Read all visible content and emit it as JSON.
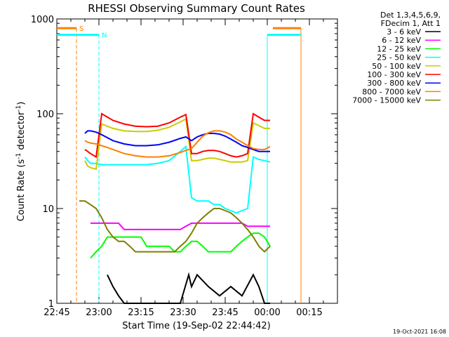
{
  "chart_data": {
    "type": "line",
    "title": "RHESSI Observing Summary Count Rates",
    "xlabel": "Start Time (19-Sep-02 22:44:42)",
    "ylabel_main": "Count Rate (s",
    "ylabel_sup1": "-1",
    "ylabel_mid": " detector",
    "ylabel_sup2": "-1",
    "ylabel_end": ")",
    "yscale": "log",
    "ylim": [
      1,
      1000
    ],
    "xlim_minutes": [
      0,
      100
    ],
    "x_ticks": [
      {
        "label": "22:45",
        "min": 0
      },
      {
        "label": "23:00",
        "min": 15
      },
      {
        "label": "23:15",
        "min": 30
      },
      {
        "label": "23:30",
        "min": 45
      },
      {
        "label": "23:45",
        "min": 60
      },
      {
        "label": "00:00",
        "min": 75
      },
      {
        "label": "00:15",
        "min": 90
      }
    ],
    "y_ticks": [
      {
        "label": "1",
        "value": 1
      },
      {
        "label": "10",
        "value": 10
      },
      {
        "label": "100",
        "value": 100
      },
      {
        "label": "1000",
        "value": 1000
      }
    ],
    "legend_header": [
      "Det 1,3,4,5,6,9,",
      "FDecim 1, Att 1"
    ],
    "series": [
      {
        "name": "3 - 6 keV",
        "color": "#000000",
        "x": [
          18,
          20,
          22,
          24,
          28,
          32,
          36,
          40,
          44,
          47,
          48,
          50,
          54,
          58,
          62,
          66,
          70,
          72,
          74,
          76
        ],
        "y": [
          2,
          1.5,
          1.2,
          1,
          1,
          1,
          1,
          1,
          1,
          2,
          1.5,
          2,
          1.5,
          1.2,
          1.5,
          1.2,
          2,
          1.5,
          1,
          1
        ]
      },
      {
        "name": "6 - 12 keV",
        "color": "#ff00ff",
        "x": [
          12,
          14,
          16,
          18,
          20,
          22,
          24,
          26,
          28,
          30,
          32,
          34,
          36,
          38,
          40,
          42,
          44,
          46,
          48,
          50,
          52,
          54,
          56,
          58,
          60,
          62,
          64,
          66,
          68,
          70,
          72,
          74,
          76
        ],
        "y": [
          7,
          7,
          7,
          7,
          7,
          7,
          6,
          6,
          6,
          6,
          6,
          6,
          6,
          6,
          6,
          6,
          6,
          6.5,
          7,
          7,
          7,
          7,
          7,
          7,
          7,
          7,
          7,
          7,
          6.5,
          6.5,
          6.5,
          6.5,
          6.5
        ]
      },
      {
        "name": "12 - 25 keV",
        "color": "#00ff00",
        "x": [
          12,
          14,
          16,
          18,
          20,
          22,
          24,
          26,
          28,
          30,
          32,
          34,
          36,
          38,
          40,
          42,
          44,
          46,
          48,
          50,
          52,
          54,
          56,
          58,
          60,
          62,
          64,
          66,
          68,
          70,
          72,
          74,
          76
        ],
        "y": [
          3,
          3.5,
          4,
          5,
          5,
          5,
          5,
          5,
          5,
          5,
          4,
          4,
          4,
          4,
          4,
          3.5,
          3.5,
          4,
          4.5,
          4.5,
          4,
          3.5,
          3.5,
          3.5,
          3.5,
          3.5,
          4,
          4.5,
          5,
          5.5,
          5.5,
          5,
          4
        ]
      },
      {
        "name": "25 - 50 keV",
        "color": "#00ffff",
        "x": [
          10,
          11,
          12,
          14,
          16,
          20,
          24,
          28,
          32,
          36,
          40,
          44,
          46,
          48,
          50,
          52,
          54,
          56,
          58,
          60,
          62,
          64,
          66,
          68,
          70,
          72,
          74,
          76
        ],
        "y": [
          35,
          32,
          30,
          30,
          29,
          29,
          29,
          29,
          29,
          30,
          32,
          40,
          45,
          13,
          12,
          12,
          12,
          11,
          11,
          10,
          9.5,
          9,
          9.5,
          10,
          35,
          33,
          32,
          31
        ]
      },
      {
        "name": "50 - 100 keV",
        "color": "#cccc00",
        "x": [
          10,
          11,
          12,
          14,
          16,
          20,
          24,
          28,
          32,
          36,
          40,
          44,
          46,
          48,
          50,
          52,
          54,
          56,
          58,
          60,
          62,
          64,
          66,
          68,
          70,
          72,
          74,
          76
        ],
        "y": [
          32,
          28,
          27,
          26,
          78,
          70,
          66,
          65,
          65,
          67,
          72,
          82,
          88,
          32,
          32,
          33,
          34,
          34,
          33,
          32,
          31,
          31,
          31,
          32,
          80,
          75,
          70,
          70
        ]
      },
      {
        "name": "100 - 300 keV",
        "color": "#ff0000",
        "x": [
          10,
          11,
          12,
          14,
          16,
          20,
          24,
          28,
          32,
          36,
          40,
          44,
          46,
          48,
          50,
          52,
          54,
          56,
          58,
          60,
          62,
          64,
          66,
          68,
          70,
          72,
          74,
          76
        ],
        "y": [
          42,
          40,
          38,
          35,
          100,
          85,
          78,
          74,
          73,
          74,
          80,
          92,
          98,
          38,
          38,
          40,
          41,
          41,
          40,
          38,
          36,
          35,
          36,
          38,
          100,
          92,
          85,
          85
        ]
      },
      {
        "name": "300 - 800 keV",
        "color": "#0000ff",
        "x": [
          10,
          11,
          12,
          14,
          16,
          20,
          24,
          28,
          32,
          36,
          40,
          44,
          46,
          48,
          50,
          52,
          54,
          56,
          58,
          60,
          62,
          64,
          66,
          68,
          70,
          72,
          74,
          76
        ],
        "y": [
          62,
          66,
          66,
          64,
          60,
          52,
          48,
          46,
          46,
          47,
          50,
          55,
          57,
          52,
          57,
          60,
          62,
          62,
          61,
          58,
          54,
          50,
          46,
          44,
          42,
          40,
          40,
          40
        ]
      },
      {
        "name": "800 - 7000 keV",
        "color": "#ff7f00",
        "x": [
          10,
          11,
          12,
          14,
          16,
          18,
          20,
          24,
          28,
          32,
          36,
          40,
          44,
          46,
          48,
          50,
          52,
          54,
          56,
          58,
          60,
          62,
          64,
          66,
          68,
          70,
          72,
          74,
          76
        ],
        "y": [
          52,
          50,
          49,
          48,
          46,
          44,
          42,
          38,
          36,
          35,
          35,
          36,
          39,
          41,
          43,
          50,
          58,
          63,
          66,
          66,
          64,
          60,
          54,
          50,
          46,
          43,
          42,
          42,
          45
        ]
      },
      {
        "name": "7000 - 15000 keV",
        "color": "#7f7f00",
        "x": [
          8,
          10,
          12,
          14,
          16,
          18,
          20,
          22,
          24,
          26,
          28,
          30,
          32,
          34,
          36,
          38,
          40,
          42,
          44,
          46,
          48,
          50,
          52,
          54,
          56,
          58,
          60,
          62,
          64,
          66,
          68,
          70,
          72,
          74,
          76
        ],
        "y": [
          12,
          12,
          11,
          10,
          8,
          6,
          5,
          4.5,
          4.5,
          4,
          3.5,
          3.5,
          3.5,
          3.5,
          3.5,
          3.5,
          3.5,
          3.5,
          4,
          4.5,
          5.5,
          7,
          8,
          9,
          10,
          10,
          9.5,
          9,
          8,
          7,
          6,
          5,
          4,
          3.5,
          4
        ]
      }
    ],
    "markers": [
      {
        "label": "S",
        "color": "#ff7f00",
        "x_start": 0,
        "x_end": 7,
        "y": 800,
        "vline_min": 7,
        "style": "dashed"
      },
      {
        "label": "N",
        "color": "#00ffff",
        "x_start": 0,
        "x_end": 15,
        "y": 680,
        "vline_min": 15,
        "style": "dashed"
      }
    ],
    "extra_lines": [
      {
        "color": "#ff7f00",
        "x_start": 77,
        "x_end": 87,
        "y": 800,
        "vline_min": 87
      },
      {
        "color": "#00ffff",
        "x_start": 75,
        "x_end": 87,
        "y": 680,
        "vline_min": 75
      }
    ],
    "footer_date": "19-Oct-2021 16:08",
    "grid": false,
    "legend_position": "right"
  }
}
